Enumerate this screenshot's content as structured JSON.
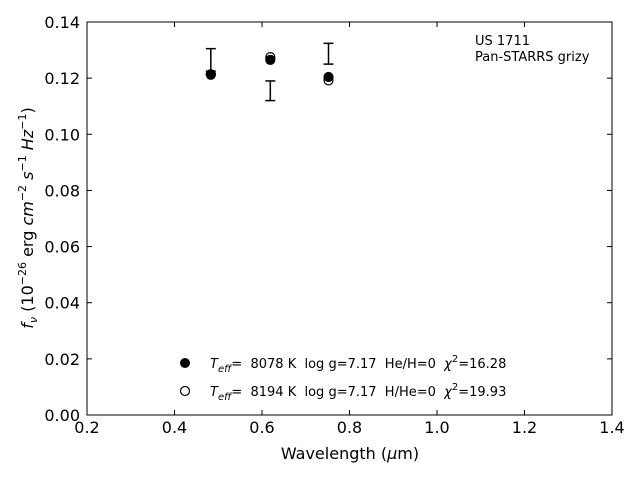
{
  "chart_data": {
    "type": "scatter",
    "xlabel": "Wavelength (μm)",
    "ylabel": "fν (10⁻²⁶ erg cm⁻² s⁻¹ Hz⁻¹)",
    "xlim": [
      0.2,
      1.4
    ],
    "ylim": [
      0.0,
      0.14
    ],
    "xticks": [
      "0.2",
      "0.4",
      "0.6",
      "0.8",
      "1.0",
      "1.2",
      "1.4"
    ],
    "yticks": [
      "0.00",
      "0.02",
      "0.04",
      "0.06",
      "0.08",
      "0.10",
      "0.12",
      "0.14"
    ],
    "annotation": [
      "US 1711",
      "Pan-STARRS grizy"
    ],
    "observed": {
      "x": [
        0.483,
        0.619,
        0.752
      ],
      "y": [
        0.1265,
        0.1155,
        0.1287
      ],
      "yerr": [
        0.004,
        0.0035,
        0.0037
      ]
    },
    "series": [
      {
        "marker": "filled-circle",
        "x": [
          0.483,
          0.619,
          0.752
        ],
        "y": [
          0.1212,
          0.1265,
          0.1204
        ],
        "legend": {
          "name": "T",
          "sub": "eff",
          "text": "=  8078 K  log g=7.17  He/H=0  ",
          "chi": "χ",
          "chi_sup": "2",
          "chi_val": "=16.28"
        }
      },
      {
        "marker": "open-circle",
        "x": [
          0.483,
          0.619,
          0.752
        ],
        "y": [
          0.1214,
          0.1275,
          0.1192
        ],
        "legend": {
          "name": "T",
          "sub": "eff",
          "text": "=  8194 K  log g=7.17  H/He=0  ",
          "chi": "χ",
          "chi_sup": "2",
          "chi_val": "=19.93"
        }
      }
    ],
    "grid": false,
    "legend_placement": "bottom-center"
  }
}
